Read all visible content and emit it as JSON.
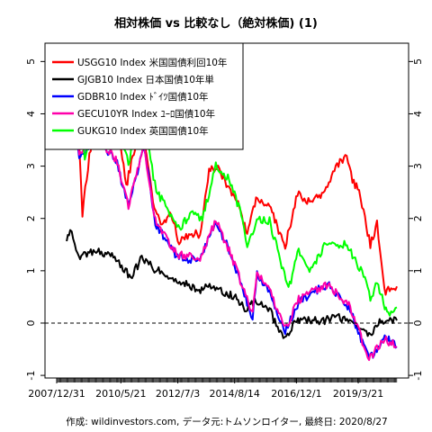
{
  "chart_data": {
    "type": "line",
    "title": "相対株価 vs 比較なし（絶対株価) (1)",
    "caption": "作成: wildinvestors.com, データ元:トムソンロイター, 最終日: 2020/8/27",
    "x_tick_labels": [
      "2007/12/31",
      "2010/5/21",
      "2012/7/3",
      "2014/8/14",
      "2016/12/1",
      "2019/3/21"
    ],
    "x_ticks": [
      "2007-12-31",
      "2010-05-21",
      "2012-07-03",
      "2014-08-14",
      "2016-12-01",
      "2019-03-21"
    ],
    "xlim": [
      "2007-12-31",
      "2020-08-27"
    ],
    "ylim": [
      -1.05,
      5.35
    ],
    "y_ticks": [
      -1,
      0,
      1,
      2,
      3,
      4,
      5
    ],
    "y_tick_labels": [
      "-1",
      "0",
      "1",
      "2",
      "3",
      "4",
      "5"
    ],
    "zero_line": 0,
    "grid": false,
    "legend_position": "top-left",
    "series": [
      {
        "name": "USGG10 Index 米国国債利回10年",
        "color": "#ff0000",
        "x": [
          "2008-05-15",
          "2008-06-15",
          "2008-08-15",
          "2008-10-15",
          "2008-12-15",
          "2009-03-01",
          "2009-06-01",
          "2009-12-01",
          "2010-04-01",
          "2010-08-01",
          "2010-12-01",
          "2011-04-01",
          "2011-08-01",
          "2011-12-01",
          "2012-04-01",
          "2012-07-20",
          "2012-12-01",
          "2013-05-01",
          "2013-09-01",
          "2014-01-01",
          "2014-06-01",
          "2014-10-01",
          "2015-02-01",
          "2015-06-01",
          "2015-12-01",
          "2016-07-01",
          "2016-12-15",
          "2017-06-01",
          "2017-12-01",
          "2018-05-01",
          "2018-10-15",
          "2019-01-01",
          "2019-04-01",
          "2019-06-01",
          "2019-09-01",
          "2019-12-01",
          "2020-03-10",
          "2020-05-01",
          "2020-08-27"
        ],
        "y": [
          4.95,
          4.8,
          4.5,
          4.0,
          2.1,
          3.0,
          3.9,
          3.8,
          3.9,
          2.6,
          3.4,
          3.5,
          2.3,
          1.9,
          2.1,
          1.55,
          1.7,
          1.7,
          2.9,
          3.0,
          2.55,
          2.3,
          1.7,
          2.35,
          2.25,
          1.45,
          2.5,
          2.3,
          2.45,
          2.95,
          3.2,
          2.75,
          2.5,
          2.1,
          1.5,
          1.9,
          0.6,
          0.65,
          0.7
        ]
      },
      {
        "name": "GJGB10 Index 日本国債10年単",
        "color": "#000000",
        "x": [
          "2008-05-15",
          "2008-07-01",
          "2008-09-01",
          "2008-12-01",
          "2009-06-01",
          "2010-01-01",
          "2010-06-01",
          "2010-10-01",
          "2011-03-01",
          "2011-08-01",
          "2012-01-01",
          "2012-06-01",
          "2012-12-01",
          "2013-04-01",
          "2013-08-01",
          "2014-01-01",
          "2014-06-01",
          "2014-10-01",
          "2015-01-15",
          "2015-06-01",
          "2015-12-01",
          "2016-03-01",
          "2016-07-15",
          "2016-11-01",
          "2017-03-01",
          "2017-12-01",
          "2018-07-01",
          "2019-01-01",
          "2019-08-15",
          "2019-12-01",
          "2020-03-15",
          "2020-08-27"
        ],
        "y": [
          1.5,
          1.85,
          1.5,
          1.25,
          1.4,
          1.3,
          1.1,
          0.85,
          1.25,
          1.05,
          0.95,
          0.85,
          0.75,
          0.55,
          0.75,
          0.65,
          0.55,
          0.45,
          0.25,
          0.45,
          0.28,
          -0.05,
          -0.28,
          0.0,
          0.08,
          0.05,
          0.1,
          0.0,
          -0.25,
          -0.02,
          0.05,
          0.05
        ]
      },
      {
        "name": "GDBR10 Index ﾄﾞｲﾂ国債10年",
        "color": "#0000ff",
        "x": [
          "2008-05-15",
          "2008-07-01",
          "2008-11-01",
          "2009-06-01",
          "2010-04-01",
          "2010-09-01",
          "2011-04-01",
          "2011-09-01",
          "2012-07-01",
          "2013-05-01",
          "2013-12-01",
          "2014-06-01",
          "2015-04-15",
          "2015-06-15",
          "2015-12-01",
          "2016-07-01",
          "2017-01-01",
          "2018-02-01",
          "2018-12-01",
          "2019-08-15",
          "2020-03-15",
          "2020-08-27"
        ],
        "y": [
          4.1,
          4.7,
          3.1,
          3.6,
          3.05,
          2.2,
          3.4,
          1.9,
          1.25,
          1.2,
          1.95,
          1.4,
          0.1,
          0.95,
          0.6,
          -0.15,
          0.4,
          0.75,
          0.25,
          -0.7,
          -0.25,
          -0.45
        ]
      },
      {
        "name": "GECU10YR Index ﾕｰﾛ国債10年",
        "color": "#ff00aa",
        "x": [
          "2008-05-15",
          "2008-07-01",
          "2008-11-01",
          "2009-06-01",
          "2010-04-01",
          "2010-09-01",
          "2011-04-01",
          "2011-09-01",
          "2012-07-01",
          "2013-05-01",
          "2013-12-01",
          "2014-06-01",
          "2015-04-15",
          "2015-06-15",
          "2015-12-01",
          "2016-07-01",
          "2017-01-01",
          "2018-02-01",
          "2018-12-01",
          "2019-08-15",
          "2020-03-15",
          "2020-08-27"
        ],
        "y": [
          4.2,
          4.75,
          3.2,
          3.6,
          3.1,
          2.25,
          3.4,
          1.95,
          1.3,
          1.25,
          1.95,
          1.4,
          0.15,
          0.95,
          0.65,
          -0.1,
          0.45,
          0.75,
          0.3,
          -0.7,
          -0.3,
          -0.45
        ]
      },
      {
        "name": "GUKG10 Index 英国国債10年",
        "color": "#00ff00",
        "x": [
          "2008-05-15",
          "2008-06-15",
          "2008-09-01",
          "2008-11-15",
          "2009-01-15",
          "2009-06-01",
          "2009-12-01",
          "2010-04-01",
          "2010-09-01",
          "2011-02-01",
          "2011-05-01",
          "2011-09-15",
          "2012-01-01",
          "2012-07-10",
          "2013-01-01",
          "2013-06-01",
          "2013-12-01",
          "2014-06-01",
          "2014-12-01",
          "2015-02-01",
          "2015-07-01",
          "2015-12-01",
          "2016-03-01",
          "2016-08-15",
          "2017-01-01",
          "2017-06-15",
          "2018-01-01",
          "2018-10-01",
          "2019-01-01",
          "2019-06-01",
          "2019-09-01",
          "2019-12-01",
          "2020-03-15",
          "2020-05-01",
          "2020-08-27"
        ],
        "y": [
          5.0,
          4.95,
          4.7,
          4.4,
          3.1,
          3.9,
          4.0,
          4.05,
          3.0,
          4.2,
          3.6,
          2.5,
          2.3,
          1.8,
          2.1,
          2.0,
          3.0,
          2.75,
          2.0,
          1.5,
          2.0,
          1.95,
          1.5,
          0.65,
          1.4,
          1.0,
          1.5,
          1.5,
          1.3,
          0.9,
          0.45,
          0.8,
          0.3,
          0.15,
          0.3
        ]
      }
    ]
  }
}
